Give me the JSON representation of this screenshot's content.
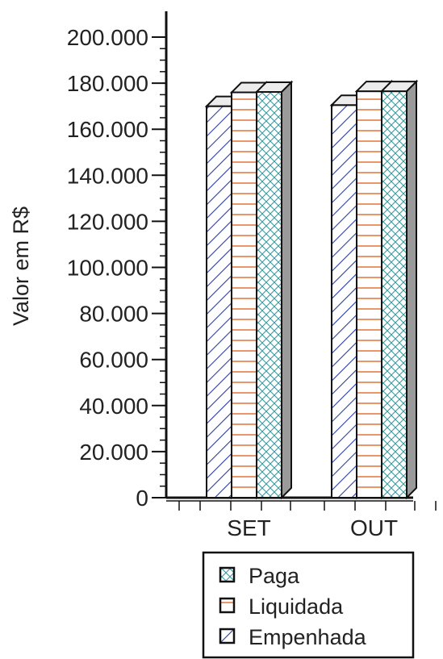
{
  "chart_data": {
    "type": "bar",
    "ylabel": "Valor em R$",
    "categories": [
      "SET",
      "OUT"
    ],
    "yticks": [
      "0",
      "20.000",
      "40.000",
      "60.000",
      "80.000",
      "100.000",
      "120.000",
      "140.000",
      "160.000",
      "180.000",
      "200.000"
    ],
    "ylim": [
      0,
      200000
    ],
    "series": [
      {
        "name": "Empenhada",
        "values": [
          170000,
          170500
        ]
      },
      {
        "name": "Liquidada",
        "values": [
          176000,
          176500
        ]
      },
      {
        "name": "Paga",
        "values": [
          176200,
          176500
        ]
      }
    ],
    "legend": {
      "placement": "bottom-center",
      "entries": [
        "Paga",
        "Liquidada",
        "Empenhada"
      ]
    },
    "colors": {
      "empenhada": "#2b3fa6",
      "liquidada": "#e58a5a",
      "paga": "#3a9aa0",
      "axis": "#111111"
    }
  }
}
